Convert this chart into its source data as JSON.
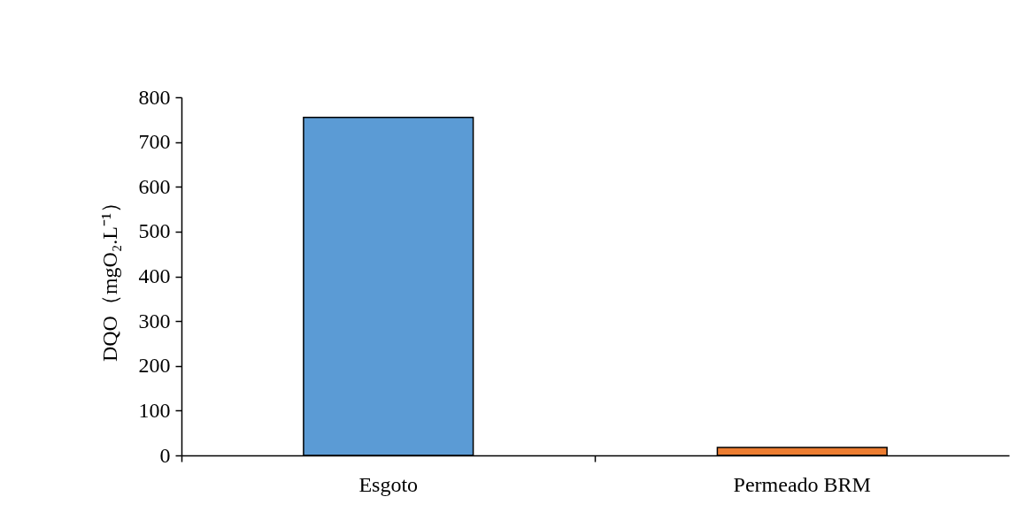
{
  "chart_data": {
    "type": "bar",
    "ylabel": "DQO（mgO₂.L⁻¹）",
    "categories": [
      "Esgoto",
      "Permeado BRM"
    ],
    "values": [
      755,
      18
    ],
    "colors": [
      "#5b9bd5",
      "#ed7d31"
    ],
    "ylim": [
      0,
      800
    ],
    "yticks": [
      0,
      100,
      200,
      300,
      400,
      500,
      600,
      700,
      800
    ],
    "grid": false,
    "legend": false
  }
}
